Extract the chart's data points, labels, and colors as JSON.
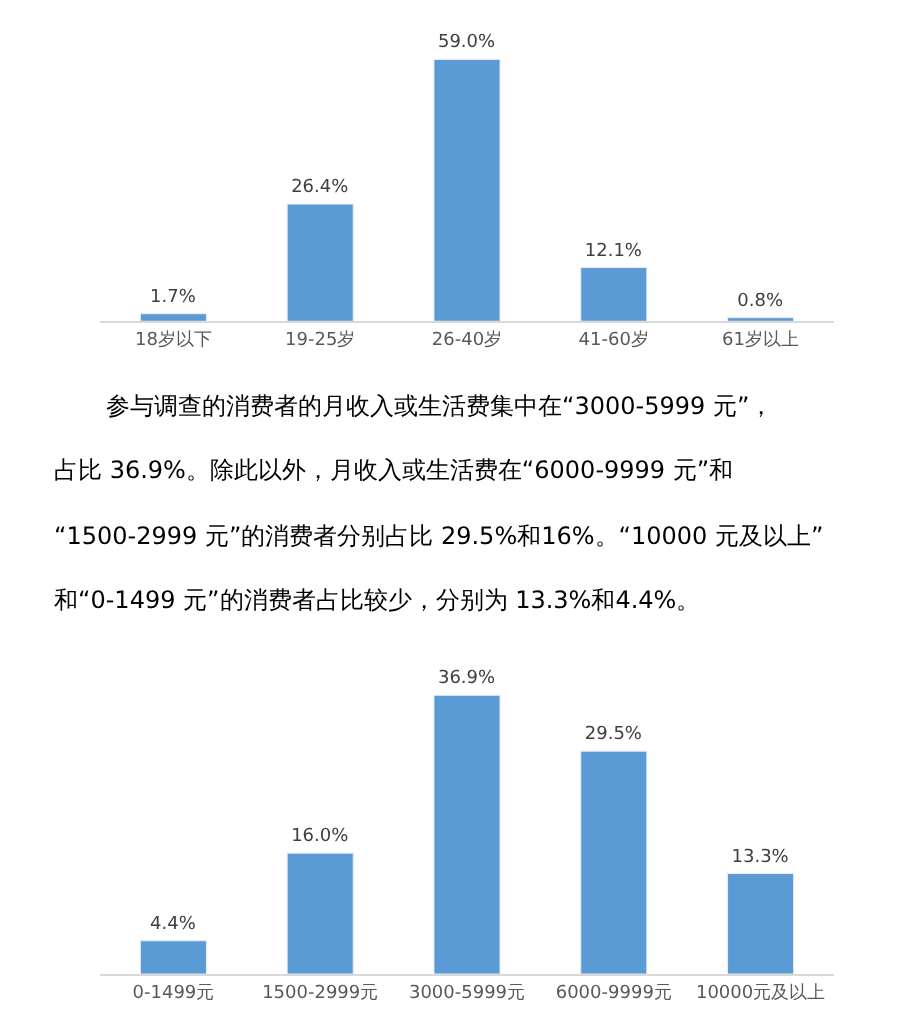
{
  "chart_data": [
    {
      "type": "bar",
      "categories": [
        "18岁以下",
        "19-25岁",
        "26-40岁",
        "41-60岁",
        "61岁以上"
      ],
      "values": [
        1.7,
        26.4,
        59.0,
        12.1,
        0.8
      ],
      "value_labels": [
        "1.7%",
        "26.4%",
        "59.0%",
        "12.1%",
        "0.8%"
      ],
      "color": "#5b9bd5",
      "annotations": [
        "参与调查的消费者的月收入或生活费集中在“3000-5999 元”，",
        "占比 36.9%。除此以外，月收入或生活费在“6000-9999 元”和",
        "“1500-2999 元”的消费者分别占比 29.5%和16%。“10000 元及以上”",
        "和“0-1499 元”的消费者占比较少，分别为 13.3%和4.4%。"
      ]
    },
    {
      "type": "bar",
      "categories": [
        "0-1499元",
        "1500-2999元",
        "3000-5999元",
        "6000-9999元",
        "10000元及以上"
      ],
      "values": [
        4.4,
        16.0,
        36.9,
        29.5,
        13.3
      ],
      "value_labels": [
        "4.4%",
        "16.0%",
        "36.9%",
        "29.5%",
        "13.3%"
      ],
      "color": "#5b9bd5"
    }
  ]
}
